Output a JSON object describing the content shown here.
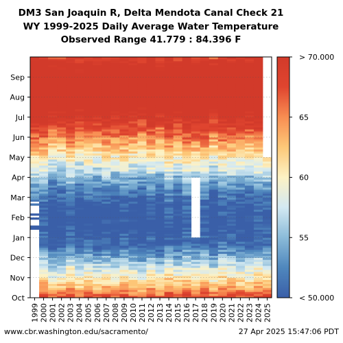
{
  "chart_data": {
    "type": "heatmap",
    "title": "DM3 San Joaquin R, Delta Mendota Canal Check 21",
    "subtitle": "WY 1999-2025 Daily Average Water Temperature",
    "subtitle2": "Observed Range 41.779 : 84.396 F",
    "x_categories": [
      "1999",
      "2000",
      "2001",
      "2002",
      "2003",
      "2004",
      "2005",
      "2006",
      "2007",
      "2008",
      "2009",
      "2010",
      "2011",
      "2012",
      "2013",
      "2014",
      "2015",
      "2016",
      "2017",
      "2018",
      "2019",
      "2020",
      "2021",
      "2022",
      "2023",
      "2024",
      "2025"
    ],
    "y_months": [
      "Oct",
      "Nov",
      "Dec",
      "Jan",
      "Feb",
      "Mar",
      "Apr",
      "May",
      "Jun",
      "Jul",
      "Aug",
      "Sep"
    ],
    "colorbar": {
      "ticks": [
        "< 50.000",
        "55",
        "60",
        "65",
        "> 70.000"
      ],
      "range": [
        50,
        70
      ],
      "colors": [
        "#3a5fa8",
        "#4f87bd",
        "#8bbbd9",
        "#d3e9f2",
        "#fdf2c4",
        "#fdc878",
        "#f88d52",
        "#e0452f",
        "#d23a2a"
      ]
    },
    "seasonal_mean_by_month": {
      "Oct": 63,
      "Nov": 57.5,
      "Dec": 51,
      "Jan": 49,
      "Feb": 49.5,
      "Mar": 53,
      "Apr": 58,
      "May": 63,
      "Jun": 68,
      "Jul": 73,
      "Aug": 74,
      "Sep": 72
    },
    "year_coverage": {
      "1999": "2nd half only",
      "2025": "through Apr"
    },
    "data_gaps": [
      {
        "year": "2017",
        "from": "Jan",
        "to": "Mar"
      }
    ]
  },
  "footer": {
    "source": "www.cbr.washington.edu/sacramento/",
    "timestamp": "27 Apr 2025 15:47:06 PDT"
  }
}
